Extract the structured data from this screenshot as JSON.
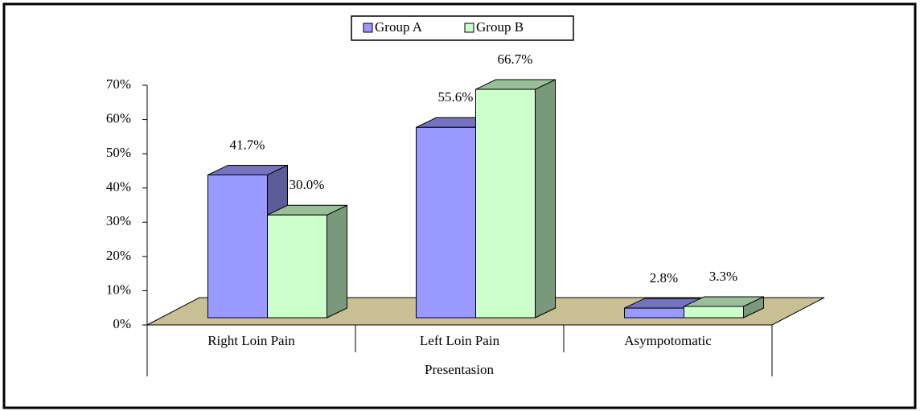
{
  "chart_data": {
    "type": "bar3d",
    "categories": [
      "Right Loin Pain",
      "Left Loin Pain",
      "Asympotomatic"
    ],
    "series": [
      {
        "name": "Group A",
        "color": "#9999ff",
        "values": [
          41.7,
          55.6,
          2.8
        ],
        "value_labels": [
          "41.7%",
          "55.6%",
          "2.8%"
        ]
      },
      {
        "name": "Group B",
        "color": "#ccffcc",
        "values": [
          30.0,
          66.7,
          3.3
        ],
        "value_labels": [
          "30.0%",
          "66.7%",
          "3.3%"
        ]
      }
    ],
    "x_label": "Presentasion",
    "ylim": [
      0,
      70
    ],
    "yticks": [
      {
        "value": 0,
        "label": "0%"
      },
      {
        "value": 10,
        "label": "10%"
      },
      {
        "value": 20,
        "label": "20%"
      },
      {
        "value": 30,
        "label": "30%"
      },
      {
        "value": 40,
        "label": "40%"
      },
      {
        "value": 50,
        "label": "50%"
      },
      {
        "value": 60,
        "label": "60%"
      },
      {
        "value": 70,
        "label": "70%"
      }
    ],
    "legend": "top"
  }
}
